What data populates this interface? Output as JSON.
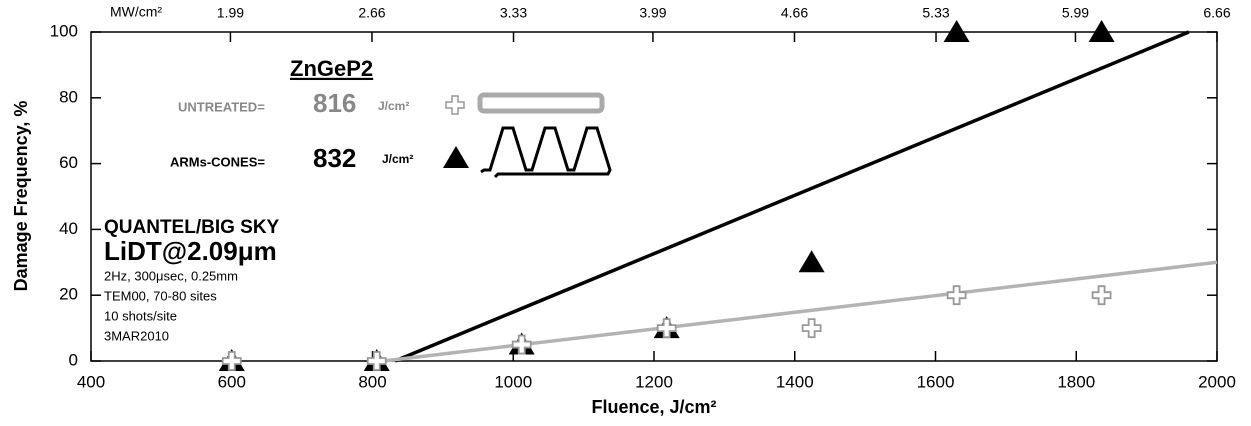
{
  "chart_data": {
    "type": "scatter",
    "x_label": "Fluence, J/cm²",
    "y_label": "Damage Frequency, %",
    "x2_label": "MW/cm²",
    "xlim": [
      400,
      2000
    ],
    "xticks": [
      400,
      600,
      800,
      1000,
      1200,
      1400,
      1600,
      1800,
      2000
    ],
    "ylim": [
      0,
      100
    ],
    "yticks": [
      0,
      20,
      40,
      60,
      80,
      100
    ],
    "x2lim": [
      1.33,
      6.66
    ],
    "x2ticks": [
      1.99,
      2.66,
      3.33,
      3.99,
      4.66,
      5.33,
      5.99,
      6.66
    ],
    "grid": false,
    "x": [
      600,
      806,
      1012,
      1218,
      1424,
      1630,
      1836
    ],
    "series": [
      {
        "name": "ARMs-CONES=",
        "color": "#000000",
        "marker": "triangle",
        "values": [
          0,
          0,
          5,
          10,
          30,
          100,
          100
        ]
      },
      {
        "name": "UNTREATED=",
        "color": "#999999",
        "marker": "cross",
        "values": [
          0,
          0,
          5,
          10,
          10,
          20,
          20
        ]
      }
    ],
    "fits": [
      {
        "color": "#000000",
        "x": [
          832,
          1960
        ],
        "values": [
          0,
          100
        ]
      },
      {
        "color": "#b3b3b3",
        "x": [
          816,
          2000
        ],
        "values": [
          0,
          30
        ]
      }
    ],
    "legend": {
      "title": "ZnGeP2",
      "thresholds": [
        "832",
        "816"
      ],
      "unit": "J/cm²"
    },
    "annotations": [
      "QUANTEL/BIG SKY",
      "LiDT@2.09μm",
      "2Hz, 300μsec, 0.25mm",
      "TEM00, 70-80 sites",
      "10 shots/site",
      "3MAR2010"
    ]
  }
}
